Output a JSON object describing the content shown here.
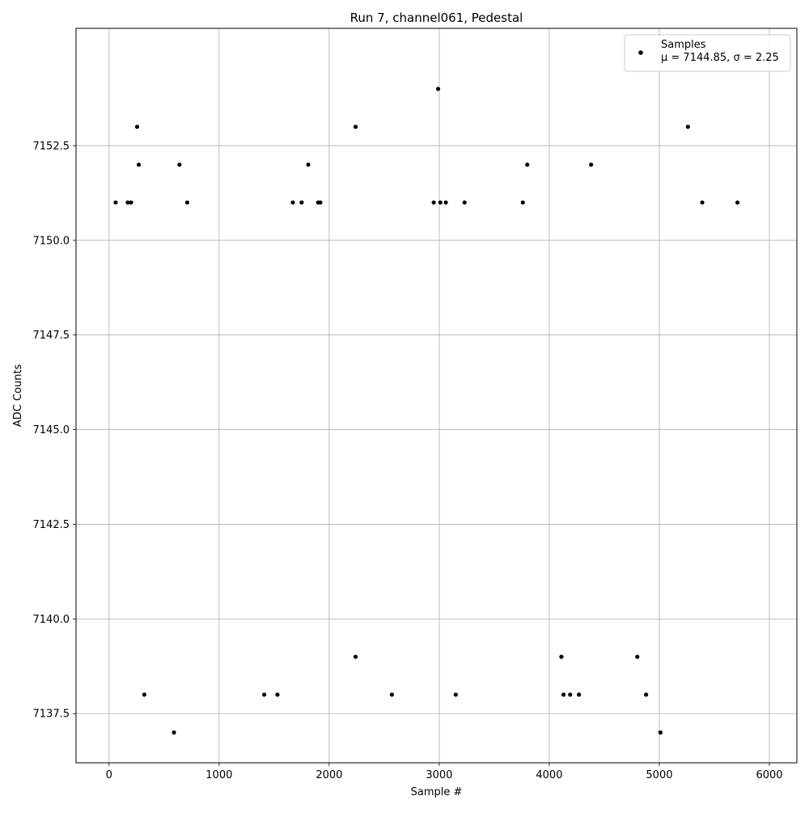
{
  "chart_data": {
    "type": "scatter",
    "title": "Run 7, channel061, Pedestal",
    "xlabel": "Sample #",
    "ylabel": "ADC Counts",
    "xlim": [
      -300,
      6250
    ],
    "ylim": [
      7136.2,
      7155.6
    ],
    "xticks": [
      0,
      1000,
      2000,
      3000,
      4000,
      5000,
      6000
    ],
    "xtick_labels": [
      "0",
      "1000",
      "2000",
      "3000",
      "4000",
      "5000",
      "6000"
    ],
    "yticks": [
      7137.5,
      7140.0,
      7142.5,
      7145.0,
      7147.5,
      7150.0,
      7152.5
    ],
    "ytick_labels": [
      "7137.5",
      "7140.0",
      "7142.5",
      "7145.0",
      "7147.5",
      "7150.0",
      "7152.5"
    ],
    "grid": true,
    "legend": {
      "placement": "top-right",
      "label": "Samples",
      "stats": "μ = 7144.85, σ = 2.25"
    },
    "marker_color": "#000000",
    "series": [
      {
        "name": "Samples",
        "points": [
          [
            255,
            7153
          ],
          [
            2240,
            7153
          ],
          [
            5260,
            7153
          ],
          [
            2990,
            7154
          ],
          [
            270,
            7152
          ],
          [
            640,
            7152
          ],
          [
            1810,
            7152
          ],
          [
            3800,
            7152
          ],
          [
            4380,
            7152
          ],
          [
            60,
            7151
          ],
          [
            170,
            7151
          ],
          [
            200,
            7151
          ],
          [
            710,
            7151
          ],
          [
            1670,
            7151
          ],
          [
            1750,
            7151
          ],
          [
            1900,
            7151
          ],
          [
            1920,
            7151
          ],
          [
            2950,
            7151
          ],
          [
            3010,
            7151
          ],
          [
            3060,
            7151
          ],
          [
            3230,
            7151
          ],
          [
            3760,
            7151
          ],
          [
            5390,
            7151
          ],
          [
            5710,
            7151
          ],
          [
            2240,
            7139
          ],
          [
            4110,
            7139
          ],
          [
            4800,
            7139
          ],
          [
            320,
            7138
          ],
          [
            1410,
            7138
          ],
          [
            1530,
            7138
          ],
          [
            2570,
            7138
          ],
          [
            3150,
            7138
          ],
          [
            4130,
            7138
          ],
          [
            4190,
            7138
          ],
          [
            4270,
            7138
          ],
          [
            4880,
            7138
          ],
          [
            590,
            7137
          ],
          [
            5010,
            7137
          ]
        ]
      }
    ]
  }
}
